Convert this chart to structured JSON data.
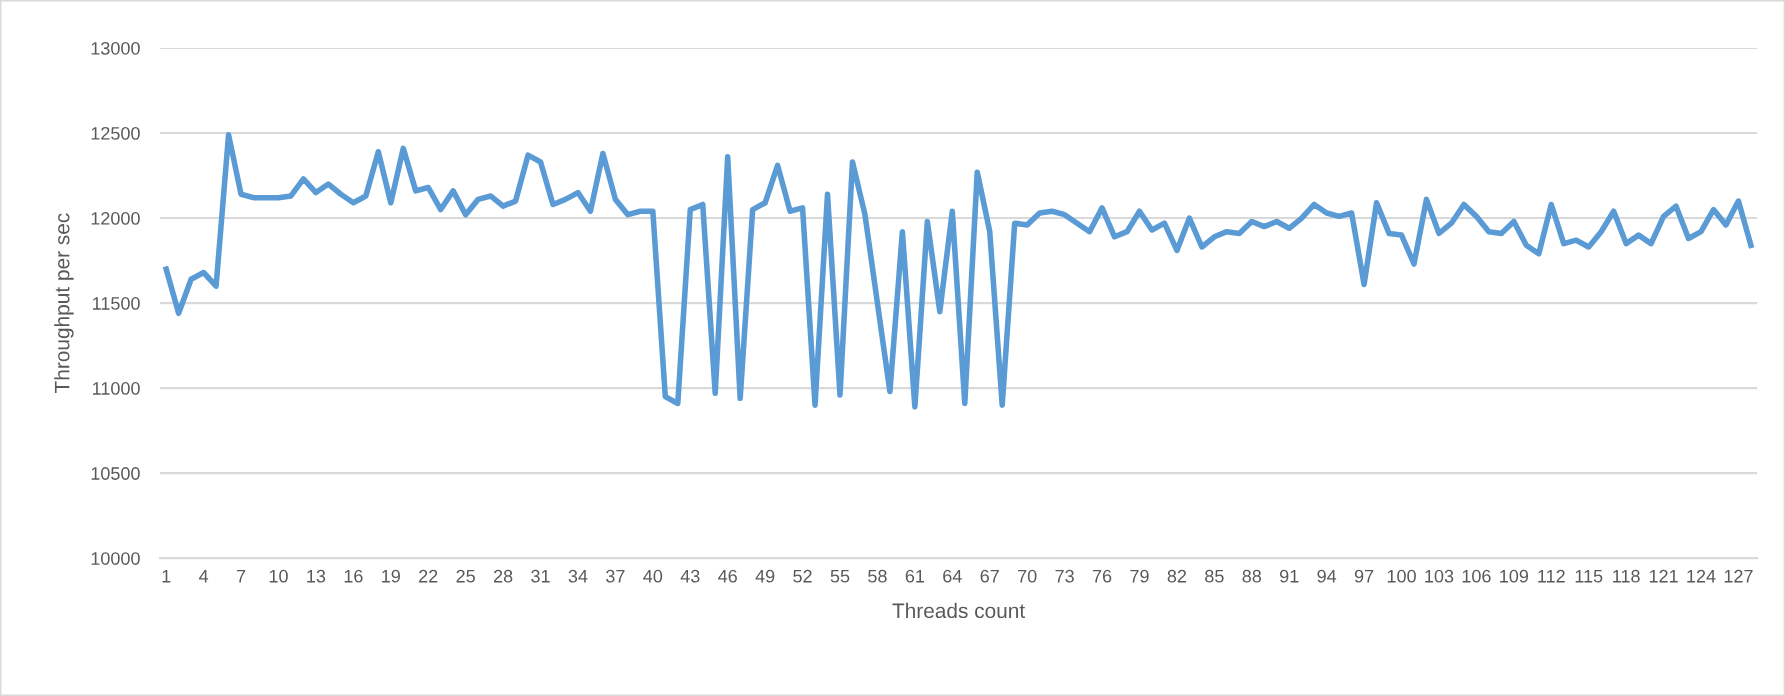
{
  "chart_data": {
    "type": "line",
    "xlabel": "Threads count",
    "ylabel": "Throughput per sec",
    "categories": [
      "1",
      null,
      null,
      "4",
      null,
      null,
      "7",
      null,
      null,
      "10",
      null,
      null,
      "13",
      null,
      null,
      "16",
      null,
      null,
      "19",
      null,
      null,
      "22",
      null,
      null,
      "25",
      null,
      null,
      "28",
      null,
      null,
      "31",
      null,
      null,
      "34",
      null,
      null,
      "37",
      null,
      null,
      "40",
      null,
      null,
      "43",
      null,
      null,
      "46",
      null,
      null,
      "49",
      null,
      null,
      "52",
      null,
      null,
      "55",
      null,
      null,
      "58",
      null,
      null,
      "61",
      null,
      null,
      "64",
      null,
      null,
      "67",
      null,
      null,
      "70",
      null,
      null,
      "73",
      null,
      null,
      "76",
      null,
      null,
      "79",
      null,
      null,
      "82",
      null,
      null,
      "85",
      null,
      null,
      "88",
      null,
      null,
      "91",
      null,
      null,
      "94",
      null,
      null,
      "97",
      null,
      null,
      "100",
      null,
      null,
      "103",
      null,
      null,
      "106",
      null,
      null,
      "109",
      null,
      null,
      "112",
      null,
      null,
      "115",
      null,
      null,
      "118",
      null,
      null,
      "121",
      null,
      null,
      "124",
      null,
      null,
      "127",
      null
    ],
    "series": [
      {
        "color": "#5b9bd5",
        "values": [
          11700,
          11440,
          11640,
          11680,
          11600,
          12490,
          12140,
          12120,
          12120,
          12120,
          12130,
          12230,
          12150,
          12200,
          12140,
          12090,
          12130,
          12390,
          12090,
          12410,
          12160,
          12180,
          12050,
          12160,
          12020,
          12110,
          12130,
          12070,
          12100,
          12370,
          12330,
          12080,
          12110,
          12150,
          12040,
          12380,
          12110,
          12020,
          12040,
          12040,
          10950,
          10910,
          12050,
          12080,
          10970,
          12360,
          10940,
          12050,
          12090,
          12310,
          12040,
          12060,
          10900,
          12140,
          10960,
          12330,
          12020,
          11500,
          10980,
          11920,
          10890,
          11980,
          11450,
          12040,
          10910,
          12270,
          11920,
          10900,
          11970,
          11960,
          12030,
          12040,
          12020,
          11970,
          11920,
          12060,
          11890,
          11920,
          12040,
          11930,
          11970,
          11810,
          12000,
          11830,
          11890,
          11920,
          11910,
          11980,
          11950,
          11980,
          11940,
          12000,
          12080,
          12030,
          12010,
          12030,
          11610,
          12090,
          11910,
          11900,
          11730,
          12110,
          11910,
          11970,
          12080,
          12010,
          11920,
          11910,
          11980,
          11840,
          11790,
          12080,
          11850,
          11870,
          11830,
          11920,
          12040,
          11850,
          11900,
          11850,
          12010,
          12070,
          11880,
          11920,
          12050,
          11960,
          12100,
          11840
        ]
      }
    ],
    "ylim": [
      10000,
      13000
    ],
    "yticks": [
      10000,
      10500,
      11000,
      11500,
      12000,
      12500,
      13000
    ],
    "grid": "y",
    "marker": "none",
    "line_style": "solid"
  }
}
